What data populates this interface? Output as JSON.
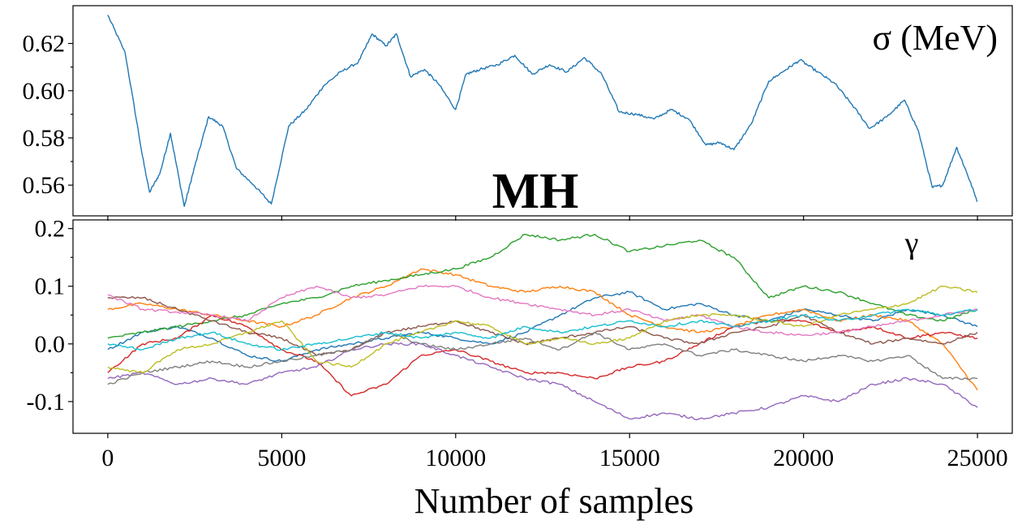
{
  "chart_data": [
    {
      "type": "line",
      "panel": "top",
      "annotation": "σ (MeV)",
      "center_annotation": "MH",
      "xlim": [
        -1000,
        26000
      ],
      "ylim": [
        0.547,
        0.636
      ],
      "yticks": [
        0.56,
        0.58,
        0.6,
        0.62
      ],
      "ytick_labels": [
        "0.56",
        "0.58",
        "0.60",
        "0.62"
      ],
      "xticks": [
        0,
        5000,
        10000,
        15000,
        20000,
        25000
      ],
      "grid": false,
      "series": [
        {
          "color": "#1f77b4",
          "x": [
            0,
            500,
            1000,
            1200,
            1500,
            1800,
            2200,
            2500,
            2900,
            3300,
            3700,
            4200,
            4700,
            5200,
            5700,
            6200,
            6700,
            7200,
            7600,
            8000,
            8300,
            8700,
            9100,
            9500,
            10000,
            10300,
            10700,
            11200,
            11700,
            12200,
            12700,
            13200,
            13700,
            14200,
            14700,
            15200,
            15700,
            16200,
            16700,
            17200,
            17600,
            18000,
            18500,
            19000,
            19500,
            19900,
            20400,
            20900,
            21400,
            21900,
            22400,
            22900,
            23300,
            23700,
            24000,
            24400,
            24700,
            25000
          ],
          "values": [
            0.632,
            0.616,
            0.572,
            0.557,
            0.565,
            0.582,
            0.551,
            0.568,
            0.589,
            0.585,
            0.567,
            0.56,
            0.552,
            0.585,
            0.592,
            0.602,
            0.608,
            0.612,
            0.624,
            0.619,
            0.624,
            0.606,
            0.609,
            0.603,
            0.592,
            0.607,
            0.609,
            0.611,
            0.615,
            0.607,
            0.611,
            0.608,
            0.614,
            0.607,
            0.591,
            0.59,
            0.588,
            0.592,
            0.588,
            0.577,
            0.578,
            0.575,
            0.586,
            0.604,
            0.609,
            0.613,
            0.608,
            0.603,
            0.594,
            0.584,
            0.589,
            0.596,
            0.583,
            0.559,
            0.56,
            0.576,
            0.565,
            0.553
          ]
        }
      ]
    },
    {
      "type": "line",
      "panel": "bottom",
      "annotation": "γ",
      "xlabel": "Number of samples",
      "xlim": [
        -1000,
        26000
      ],
      "ylim": [
        -0.155,
        0.215
      ],
      "yticks": [
        -0.1,
        0.0,
        0.1,
        0.2
      ],
      "ytick_labels": [
        "-0.1",
        "0.0",
        "0.1",
        "0.2"
      ],
      "xticks": [
        0,
        5000,
        10000,
        15000,
        20000,
        25000
      ],
      "xtick_labels": [
        "0",
        "5000",
        "10000",
        "15000",
        "20000",
        "25000"
      ],
      "grid": false,
      "x": [
        0,
        1000,
        2000,
        3000,
        4000,
        5000,
        6000,
        7000,
        8000,
        9000,
        10000,
        11000,
        12000,
        13000,
        14000,
        15000,
        16000,
        17000,
        18000,
        19000,
        20000,
        21000,
        22000,
        23000,
        24000,
        25000
      ],
      "series": [
        {
          "color": "#1f77b4",
          "values": [
            -0.01,
            0.02,
            0.03,
            0.01,
            -0.02,
            -0.03,
            -0.01,
            0.0,
            0.01,
            0.02,
            0.01,
            0.0,
            0.02,
            0.05,
            0.08,
            0.09,
            0.06,
            0.07,
            0.05,
            0.04,
            0.06,
            0.05,
            0.04,
            0.06,
            0.05,
            0.03
          ]
        },
        {
          "color": "#ff7f0e",
          "values": [
            0.06,
            0.07,
            0.06,
            0.05,
            0.04,
            0.03,
            0.05,
            0.08,
            0.1,
            0.13,
            0.12,
            0.1,
            0.09,
            0.1,
            0.09,
            0.05,
            0.03,
            0.02,
            0.03,
            0.05,
            0.06,
            0.04,
            0.05,
            0.04,
            0.0,
            -0.08
          ]
        },
        {
          "color": "#2ca02c",
          "values": [
            0.01,
            0.02,
            0.03,
            0.04,
            0.05,
            0.07,
            0.08,
            0.1,
            0.11,
            0.12,
            0.13,
            0.15,
            0.19,
            0.18,
            0.19,
            0.16,
            0.17,
            0.18,
            0.15,
            0.08,
            0.1,
            0.09,
            0.07,
            0.05,
            0.04,
            0.06
          ]
        },
        {
          "color": "#d62728",
          "values": [
            -0.05,
            0.0,
            0.01,
            0.05,
            0.03,
            -0.01,
            -0.03,
            -0.09,
            -0.07,
            -0.02,
            -0.01,
            -0.03,
            -0.05,
            -0.05,
            -0.06,
            -0.04,
            -0.03,
            0.0,
            0.03,
            0.04,
            0.04,
            0.02,
            0.03,
            0.01,
            0.02,
            0.01
          ]
        },
        {
          "color": "#9467bd",
          "values": [
            -0.06,
            -0.05,
            -0.07,
            -0.06,
            -0.07,
            -0.05,
            -0.04,
            -0.01,
            0.0,
            0.0,
            -0.02,
            -0.04,
            -0.06,
            -0.07,
            -0.1,
            -0.13,
            -0.12,
            -0.13,
            -0.12,
            -0.11,
            -0.09,
            -0.1,
            -0.07,
            -0.06,
            -0.07,
            -0.11
          ]
        },
        {
          "color": "#8c564b",
          "values": [
            0.08,
            0.08,
            0.06,
            0.04,
            0.02,
            0.01,
            -0.02,
            -0.01,
            0.02,
            0.03,
            0.04,
            0.02,
            0.0,
            0.01,
            0.02,
            0.03,
            0.01,
            0.0,
            0.02,
            0.03,
            0.05,
            0.02,
            0.0,
            0.01,
            0.0,
            0.02
          ]
        },
        {
          "color": "#e377c2",
          "values": [
            0.085,
            0.06,
            0.055,
            0.05,
            0.04,
            0.08,
            0.1,
            0.08,
            0.085,
            0.1,
            0.1,
            0.08,
            0.07,
            0.06,
            0.05,
            0.06,
            0.04,
            0.05,
            0.03,
            0.02,
            0.015,
            0.02,
            0.03,
            0.04,
            0.05,
            0.06
          ]
        },
        {
          "color": "#7f7f7f",
          "values": [
            -0.07,
            -0.05,
            -0.04,
            -0.03,
            -0.04,
            -0.03,
            -0.02,
            -0.01,
            0.02,
            0.0,
            -0.01,
            0.0,
            0.01,
            -0.01,
            0.02,
            -0.01,
            0.0,
            -0.02,
            -0.01,
            -0.02,
            -0.03,
            -0.02,
            -0.03,
            -0.02,
            -0.06,
            -0.06
          ]
        },
        {
          "color": "#bcbd22",
          "values": [
            -0.04,
            -0.05,
            -0.01,
            0.0,
            0.02,
            0.04,
            -0.03,
            -0.04,
            0.0,
            0.02,
            0.04,
            0.03,
            0.0,
            0.01,
            0.0,
            0.01,
            0.04,
            0.05,
            0.05,
            0.04,
            0.03,
            0.05,
            0.06,
            0.07,
            0.1,
            0.09
          ]
        },
        {
          "color": "#17becf",
          "values": [
            0.0,
            -0.01,
            0.01,
            0.02,
            0.0,
            -0.01,
            0.0,
            0.01,
            0.02,
            0.01,
            0.02,
            0.01,
            0.03,
            0.02,
            0.03,
            0.04,
            0.03,
            0.04,
            0.03,
            0.04,
            0.05,
            0.04,
            0.05,
            0.06,
            0.05,
            0.06
          ]
        }
      ]
    }
  ]
}
